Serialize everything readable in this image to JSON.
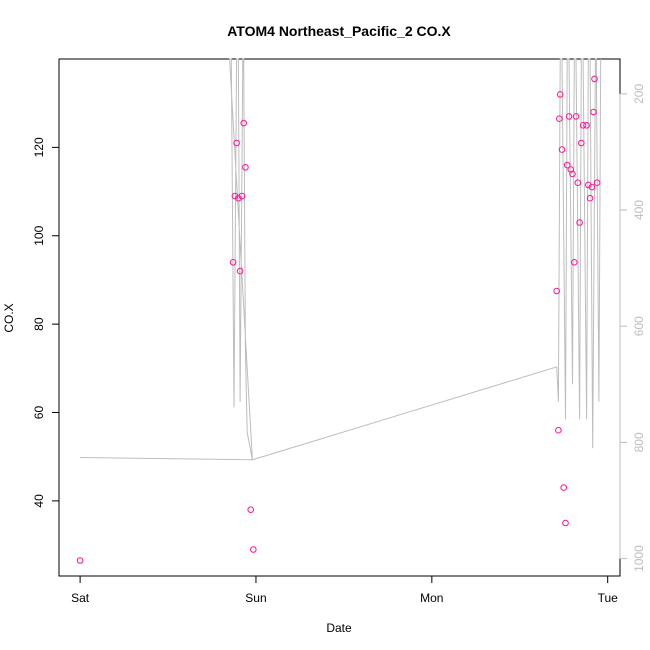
{
  "chart_data": {
    "type": "scatter",
    "title": "ATOM4 Northeast_Pacific_2 CO.X",
    "xlabel": "Date",
    "ylabel": "CO.X",
    "x_ticks": [
      "Sat",
      "Sun",
      "Mon",
      "Tue"
    ],
    "x_tick_days": [
      0,
      1,
      2,
      3
    ],
    "xlim_days": [
      -0.12,
      3.07
    ],
    "ylim": [
      23,
      140
    ],
    "y_ticks": [
      40,
      60,
      80,
      100,
      120
    ],
    "y2_ticks": [
      200,
      400,
      600,
      800,
      1000
    ],
    "y2lim_reversed": [
      1030,
      140
    ],
    "grid": false,
    "series": [
      {
        "color": "#ff1493",
        "marker": "open-circle",
        "points": [
          [
            0.0,
            26.5
          ],
          [
            0.87,
            94
          ],
          [
            0.88,
            109
          ],
          [
            0.89,
            121
          ],
          [
            0.9,
            108.5
          ],
          [
            0.91,
            92
          ],
          [
            0.92,
            109
          ],
          [
            0.93,
            125.5
          ],
          [
            0.94,
            115.5
          ],
          [
            0.97,
            38
          ],
          [
            0.985,
            29
          ],
          [
            2.71,
            87.5
          ],
          [
            2.72,
            56
          ],
          [
            2.725,
            126.5
          ],
          [
            2.73,
            132
          ],
          [
            2.74,
            119.5
          ],
          [
            2.75,
            43
          ],
          [
            2.76,
            35
          ],
          [
            2.77,
            116
          ],
          [
            2.78,
            127
          ],
          [
            2.79,
            115
          ],
          [
            2.8,
            114
          ],
          [
            2.81,
            94
          ],
          [
            2.82,
            127
          ],
          [
            2.83,
            112
          ],
          [
            2.84,
            103
          ],
          [
            2.85,
            121
          ],
          [
            2.86,
            125
          ],
          [
            2.88,
            125
          ],
          [
            2.89,
            111.5
          ],
          [
            2.9,
            108.5
          ],
          [
            2.91,
            111
          ],
          [
            2.92,
            128
          ],
          [
            2.925,
            135.5
          ],
          [
            2.94,
            112
          ]
        ]
      },
      {
        "color": "#bdbdbd",
        "marker": "line",
        "axis": "right",
        "points": [
          [
            0.0,
            826
          ],
          [
            0.98,
            830
          ],
          [
            0.95,
            783
          ],
          [
            0.94,
            640
          ],
          [
            0.93,
            140
          ],
          [
            0.925,
            140
          ],
          [
            0.91,
            730
          ],
          [
            0.9,
            140
          ],
          [
            0.89,
            140
          ],
          [
            0.875,
            740
          ],
          [
            0.86,
            140
          ],
          [
            0.85,
            140
          ],
          [
            0.98,
            830
          ],
          [
            2.71,
            670
          ],
          [
            2.72,
            730
          ],
          [
            2.73,
            140
          ],
          [
            2.74,
            140
          ],
          [
            2.76,
            760
          ],
          [
            2.77,
            140
          ],
          [
            2.78,
            140
          ],
          [
            2.8,
            700
          ],
          [
            2.81,
            140
          ],
          [
            2.82,
            140
          ],
          [
            2.84,
            760
          ],
          [
            2.85,
            140
          ],
          [
            2.86,
            140
          ],
          [
            2.88,
            760
          ],
          [
            2.89,
            140
          ],
          [
            2.9,
            140
          ],
          [
            2.915,
            810
          ],
          [
            2.93,
            140
          ],
          [
            2.935,
            140
          ],
          [
            2.95,
            730
          ],
          [
            2.96,
            140
          ]
        ]
      }
    ]
  }
}
